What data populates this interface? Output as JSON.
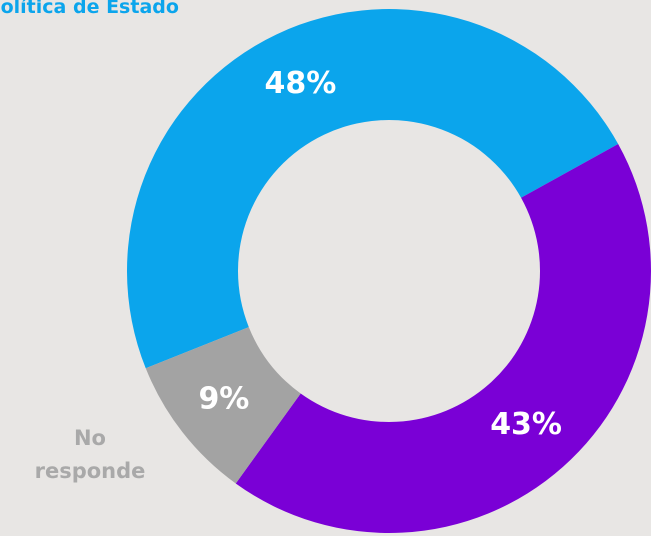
{
  "chart_data": {
    "type": "donut",
    "categories": [
      "política de Estado",
      null,
      "No responde"
    ],
    "values": [
      48,
      43,
      9
    ],
    "value_labels": [
      "48%",
      "43%",
      "9%"
    ],
    "colors": [
      "#0ba5ec",
      "#7a00d6",
      "#a3a3a3"
    ]
  }
}
